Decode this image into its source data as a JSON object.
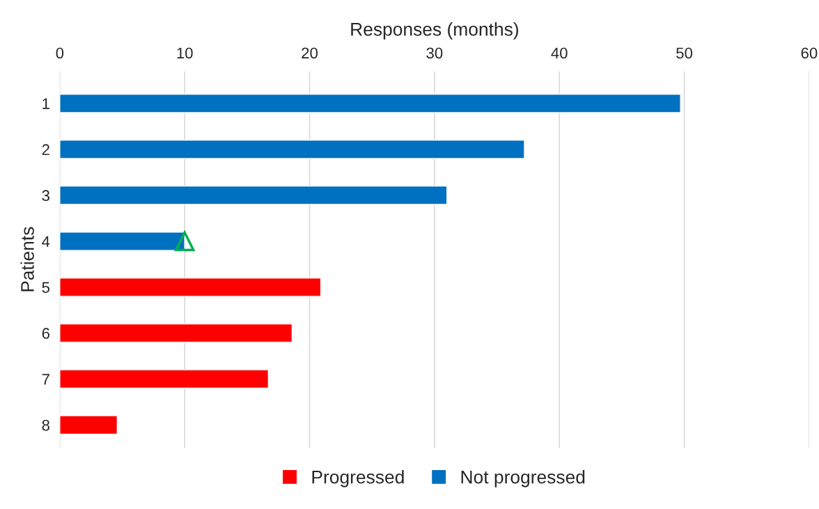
{
  "chart_data": {
    "type": "bar",
    "orientation": "horizontal",
    "xlabel": "Responses (months)",
    "ylabel": "Patients",
    "categories": [
      "1",
      "2",
      "3",
      "4",
      "5",
      "6",
      "7",
      "8"
    ],
    "series": [
      {
        "name": "Progressed",
        "color": "#ff0000",
        "values": [
          null,
          null,
          null,
          null,
          20.9,
          18.6,
          16.7,
          4.6
        ]
      },
      {
        "name": "Not progressed",
        "color": "#0070c0",
        "values": [
          49.7,
          37.2,
          31.0,
          10.0,
          null,
          null,
          null,
          null
        ]
      },
      {
        "type": "scatter",
        "color": "#00b050",
        "marker": "triangle",
        "values": [
          null,
          null,
          null,
          10.0,
          null,
          null,
          null,
          null
        ]
      }
    ],
    "xlim": [
      0,
      60
    ],
    "xticks": [
      0,
      10,
      20,
      30,
      40,
      50,
      60
    ],
    "grid": "x",
    "legend": "bottom"
  }
}
